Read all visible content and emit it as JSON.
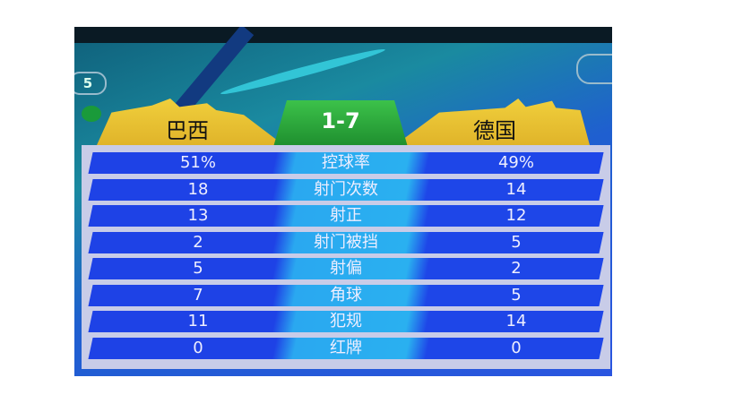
{
  "left_badge": "5",
  "match": {
    "home": "巴西",
    "away": "德国",
    "score": "1-7"
  },
  "stats": [
    {
      "label": "控球率",
      "home": "51%",
      "away": "49%"
    },
    {
      "label": "射门次数",
      "home": "18",
      "away": "14"
    },
    {
      "label": "射正",
      "home": "13",
      "away": "12"
    },
    {
      "label": "射门被挡",
      "home": "2",
      "away": "5"
    },
    {
      "label": "射偏",
      "home": "5",
      "away": "2"
    },
    {
      "label": "角球",
      "home": "7",
      "away": "5"
    },
    {
      "label": "犯规",
      "home": "11",
      "away": "14"
    },
    {
      "label": "红牌",
      "home": "0",
      "away": "0"
    }
  ],
  "colors": {
    "row_blue": "#1e42e6",
    "row_center": "#2aa8f0",
    "score_green": "#2aa83a",
    "leaf_yellow": "#f0cf3c"
  }
}
